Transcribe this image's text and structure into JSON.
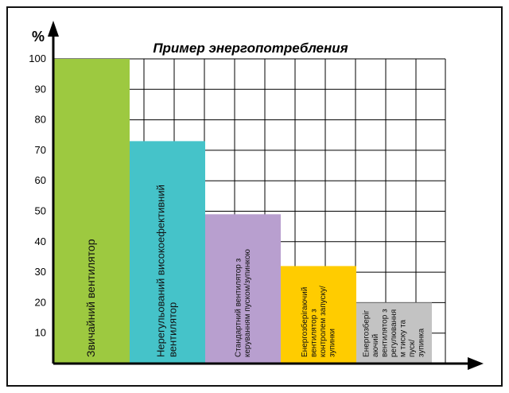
{
  "chart_data": {
    "type": "bar",
    "title": "Пример энергопотребления",
    "ylabel": "%",
    "xlabel": "",
    "ylim": [
      0,
      100
    ],
    "yticks": [
      10,
      20,
      30,
      40,
      50,
      60,
      70,
      80,
      90,
      100
    ],
    "grid": true,
    "categories": [
      "Звичайний вентилятор",
      "Нерегульований високоефективний вентилятор",
      "Стандартний вентилятор з керуванням пуском/зупинкою",
      "Енергозберігаючий вентилятор з контролем запуску/ зупинки",
      "Енергозберігаючий вентилятор з регулюванням тиску та пуск/ зупинка"
    ],
    "label_lines": [
      [
        "Звичайний вентилятор"
      ],
      [
        "Нерегульований високоефективний",
        "вентилятор"
      ],
      [
        "Стандартний вентилятор з",
        "керуванням пуском/зупинкою"
      ],
      [
        "Енергозберігаючий",
        "вентилятор з",
        "контролем запуску/",
        "зупинки"
      ],
      [
        "Енергозберіг",
        "аючий",
        "вентилятор з",
        "регулювання",
        "м тиску та",
        "пуск/",
        "зупинка"
      ]
    ],
    "values": [
      100,
      73,
      49,
      32,
      20
    ],
    "colors": [
      "#9dc940",
      "#45c3c9",
      "#b89fcf",
      "#ffcc00",
      "#c3c3c3"
    ]
  }
}
